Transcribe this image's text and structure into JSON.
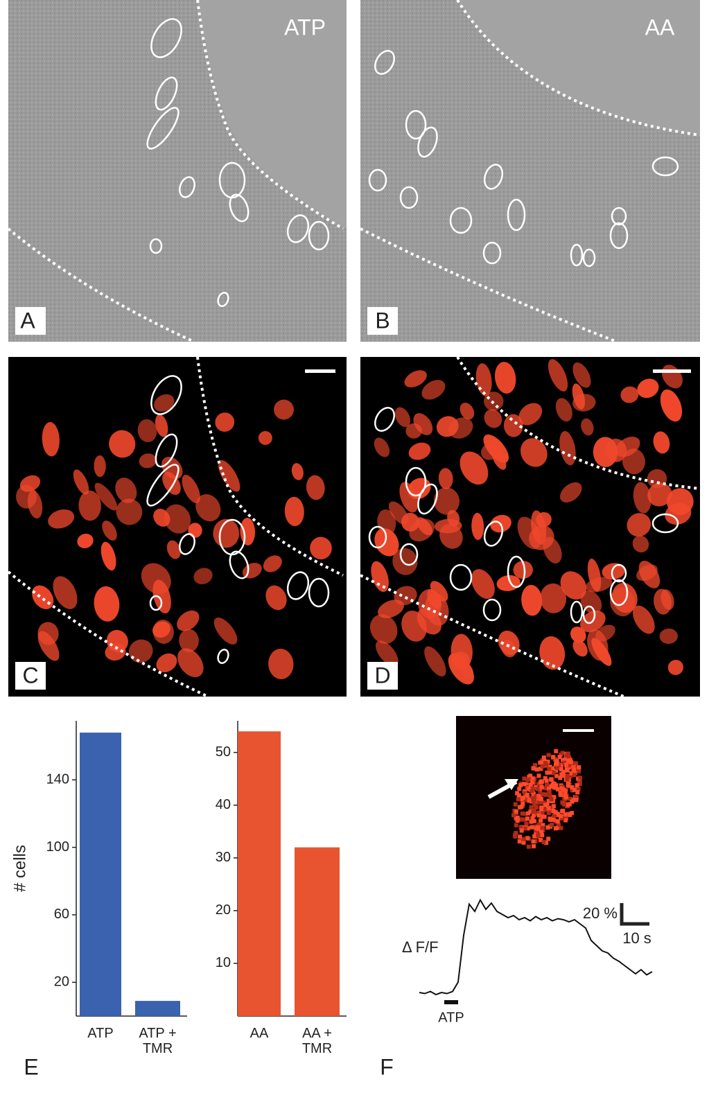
{
  "panels": [
    {
      "letter": "A",
      "label": "ATP"
    },
    {
      "letter": "B",
      "label": "AA"
    },
    {
      "letter": "C"
    },
    {
      "letter": "D"
    }
  ],
  "figure_labels": {
    "e": "E",
    "f": "F"
  },
  "chart_data": [
    {
      "type": "bar",
      "ylabel": "# cells",
      "categories": [
        "ATP",
        "ATP + TMR"
      ],
      "values": [
        168,
        9
      ],
      "color": "#3a62ae",
      "ylim": [
        0,
        175
      ],
      "yticks": [
        20,
        60,
        100,
        140
      ]
    },
    {
      "type": "bar",
      "categories": [
        "AA",
        "AA + TMR"
      ],
      "values": [
        54,
        32
      ],
      "color": "#e85430",
      "ylim": [
        0,
        56
      ],
      "yticks": [
        10,
        20,
        30,
        40,
        50
      ]
    },
    {
      "type": "line",
      "ylabel": "Δ F/F",
      "color": "#111",
      "x": [
        0,
        2,
        4,
        6,
        8,
        10,
        12,
        14,
        16,
        18,
        20,
        22,
        24,
        26,
        28,
        30,
        32,
        34,
        36,
        38,
        40,
        42,
        44,
        46,
        48,
        50,
        52,
        54,
        56,
        58,
        60,
        62,
        64,
        66,
        68,
        70,
        72,
        74,
        76,
        78,
        80,
        82,
        84
      ],
      "values": [
        0,
        -1,
        1,
        -2,
        0,
        -1,
        1,
        10,
        55,
        85,
        78,
        89,
        80,
        86,
        78,
        75,
        72,
        74,
        70,
        72,
        69,
        73,
        70,
        72,
        69,
        71,
        70,
        68,
        70,
        66,
        62,
        50,
        45,
        40,
        38,
        33,
        30,
        26,
        22,
        18,
        22,
        17,
        20
      ],
      "scale_bar": {
        "x": 10,
        "x_label": "10 s",
        "y": 20,
        "y_label": "20 %"
      },
      "stimulus": {
        "label": "ATP",
        "x": [
          9,
          14
        ]
      }
    }
  ]
}
